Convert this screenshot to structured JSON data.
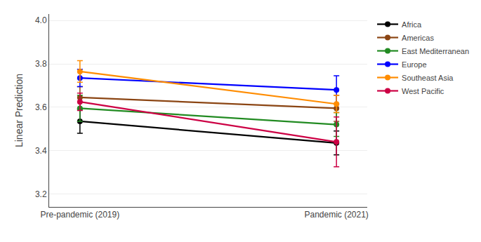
{
  "chart_data": {
    "type": "line",
    "ylabel": "Linear Prediction",
    "xlim": [
      -0.12,
      1.12
    ],
    "xticks": [
      {
        "value": 0,
        "label": "Pre-pandemic (2019)"
      },
      {
        "value": 1,
        "label": "Pandemic (2021)"
      }
    ],
    "ylim": [
      3.14,
      4.03
    ],
    "yticks": [
      3.2,
      3.4,
      3.6,
      3.8,
      {
        "value": 4.0,
        "label": "4.0"
      }
    ],
    "grid": true,
    "legend": "upper right",
    "marker": "circle",
    "line_style": "solid",
    "series": [
      {
        "name": "Africa",
        "color": "#000000",
        "x": [
          0,
          1
        ],
        "values": [
          3.535,
          3.435
        ],
        "yerr_low": [
          0.055,
          0.055
        ],
        "yerr_high": [
          0.055,
          0.055
        ]
      },
      {
        "name": "Americas",
        "color": "#8B4513",
        "x": [
          0,
          1
        ],
        "values": [
          3.645,
          3.595
        ],
        "yerr_low": [
          0.05,
          0.06
        ],
        "yerr_high": [
          0.05,
          0.06
        ]
      },
      {
        "name": "East Mediterranean",
        "color": "#228B22",
        "x": [
          0,
          1
        ],
        "values": [
          3.595,
          3.52
        ],
        "yerr_low": [
          0.06,
          0.055
        ],
        "yerr_high": [
          0.06,
          0.055
        ]
      },
      {
        "name": "Europe",
        "color": "#0000FF",
        "x": [
          0,
          1
        ],
        "values": [
          3.735,
          3.68
        ],
        "yerr_low": [
          0.04,
          0.065
        ],
        "yerr_high": [
          0.04,
          0.065
        ]
      },
      {
        "name": "Southeast Asia",
        "color": "#FF8C00",
        "x": [
          0,
          1
        ],
        "values": [
          3.765,
          3.615
        ],
        "yerr_low": [
          0.05,
          0.04
        ],
        "yerr_high": [
          0.05,
          0.04
        ]
      },
      {
        "name": "West Pacific",
        "color": "#CC0044",
        "x": [
          0,
          1
        ],
        "values": [
          3.625,
          3.44
        ],
        "yerr_low": [
          0.04,
          0.115
        ],
        "yerr_high": [
          0.04,
          0.115
        ]
      }
    ]
  }
}
